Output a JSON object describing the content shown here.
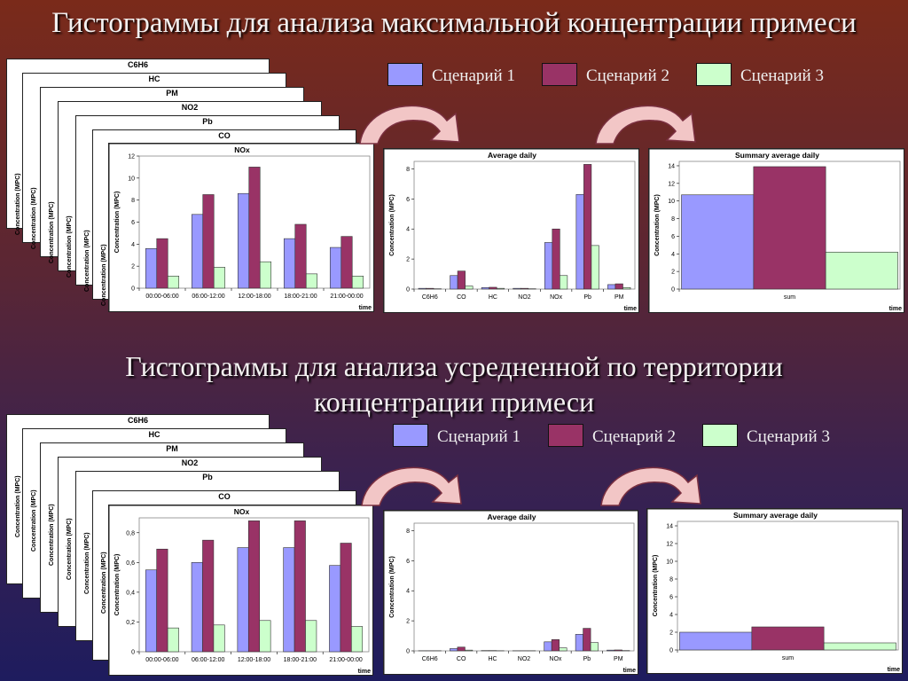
{
  "headings": {
    "top": "Гистограммы для анализа максимальной концентрации примеси",
    "bottom_line1": "Гистограммы для анализа усредненной по территории",
    "bottom_line2": "концентрации примеси"
  },
  "legend": {
    "items": [
      "Сценарий 1",
      "Сценарий 2",
      "Сценарий 3"
    ],
    "colors": [
      "#9999ff",
      "#993366",
      "#ccffcc"
    ]
  },
  "stack_titles": [
    "C6H6",
    "HC",
    "PM",
    "NO2",
    "Pb",
    "CO"
  ],
  "ylabel": "Concentration (MPC)",
  "xlabel": "time",
  "chart_data": [
    {
      "id": "top-nox",
      "type": "bar",
      "title": "NOx",
      "categories": [
        "00:00-06:00",
        "06:00-12:00",
        "12:00-18:00",
        "18:00-21:00",
        "21:00-00:00"
      ],
      "series": [
        {
          "name": "Сценарий 1",
          "values": [
            3.6,
            6.7,
            8.6,
            4.5,
            3.7
          ]
        },
        {
          "name": "Сценарий 2",
          "values": [
            4.5,
            8.5,
            11.0,
            5.8,
            4.7
          ]
        },
        {
          "name": "Сценарий 3",
          "values": [
            1.1,
            1.9,
            2.4,
            1.3,
            1.1
          ]
        }
      ],
      "ylim": [
        0,
        12
      ],
      "yticks": [
        "0",
        "2",
        "4",
        "6",
        "8",
        "10",
        "12"
      ],
      "ylabel": "Concentration (MPC)",
      "xlabel": "time"
    },
    {
      "id": "top-avg",
      "type": "bar",
      "title": "Average daily",
      "categories": [
        "C6H6",
        "CO",
        "HC",
        "NO2",
        "NOx",
        "Pb",
        "PM"
      ],
      "series": [
        {
          "name": "Сценарий 1",
          "values": [
            0.05,
            0.9,
            0.1,
            0.05,
            3.1,
            6.3,
            0.3
          ]
        },
        {
          "name": "Сценарий 2",
          "values": [
            0.05,
            1.2,
            0.12,
            0.05,
            4.0,
            8.3,
            0.35
          ]
        },
        {
          "name": "Сценарий 3",
          "values": [
            0.02,
            0.2,
            0.05,
            0.02,
            0.9,
            2.9,
            0.1
          ]
        }
      ],
      "ylim": [
        0,
        8.5
      ],
      "yticks": [
        "0",
        "2",
        "4",
        "6",
        "8"
      ],
      "ylabel": "Concentration (MPC)",
      "xlabel": "time"
    },
    {
      "id": "top-sum",
      "type": "bar",
      "title": "Summary average daily",
      "categories": [
        "sum"
      ],
      "series": [
        {
          "name": "Сценарий 1",
          "values": [
            10.7
          ]
        },
        {
          "name": "Сценарий 2",
          "values": [
            13.9
          ]
        },
        {
          "name": "Сценарий 3",
          "values": [
            4.2
          ]
        }
      ],
      "ylim": [
        0,
        14.5
      ],
      "yticks": [
        "0",
        "2",
        "4",
        "6",
        "8",
        "10",
        "12",
        "14"
      ],
      "ylabel": "Concentration (MPC)",
      "xlabel": "time"
    },
    {
      "id": "bottom-nox",
      "type": "bar",
      "title": "NOx",
      "categories": [
        "00:00-06:00",
        "06:00-12:00",
        "12:00-18:00",
        "18:00-21:00",
        "21:00-00:00"
      ],
      "series": [
        {
          "name": "Сценарий 1",
          "values": [
            0.55,
            0.6,
            0.7,
            0.7,
            0.58
          ]
        },
        {
          "name": "Сценарий 2",
          "values": [
            0.69,
            0.75,
            0.88,
            0.88,
            0.73
          ]
        },
        {
          "name": "Сценарий 3",
          "values": [
            0.16,
            0.18,
            0.21,
            0.21,
            0.17
          ]
        }
      ],
      "ylim": [
        0,
        0.9
      ],
      "yticks": [
        "0",
        "0,2",
        "0,4",
        "0,6",
        "0,8"
      ],
      "ylabel": "Concentration (MPC)",
      "xlabel": "time"
    },
    {
      "id": "bottom-avg",
      "type": "bar",
      "title": "Average daily",
      "categories": [
        "C6H6",
        "CO",
        "HC",
        "NO2",
        "NOx",
        "Pb",
        "PM"
      ],
      "series": [
        {
          "name": "Сценарий 1",
          "values": [
            0.01,
            0.15,
            0.02,
            0.01,
            0.6,
            1.1,
            0.05
          ]
        },
        {
          "name": "Сценарий 2",
          "values": [
            0.01,
            0.25,
            0.02,
            0.01,
            0.75,
            1.5,
            0.06
          ]
        },
        {
          "name": "Сценарий 3",
          "values": [
            0.01,
            0.05,
            0.01,
            0.01,
            0.2,
            0.55,
            0.02
          ]
        }
      ],
      "ylim": [
        0,
        8.5
      ],
      "yticks": [
        "0",
        "2",
        "4",
        "6",
        "8"
      ],
      "ylabel": "Concentration (MPC)",
      "xlabel": "time"
    },
    {
      "id": "bottom-sum",
      "type": "bar",
      "title": "Summary average daily",
      "categories": [
        "sum"
      ],
      "series": [
        {
          "name": "Сценарий 1",
          "values": [
            2.0
          ]
        },
        {
          "name": "Сценарий 2",
          "values": [
            2.6
          ]
        },
        {
          "name": "Сценарий 3",
          "values": [
            0.8
          ]
        }
      ],
      "ylim": [
        0,
        14.5
      ],
      "yticks": [
        "0",
        "2",
        "4",
        "6",
        "8",
        "10",
        "12",
        "14"
      ],
      "ylabel": "Concentration (MPC)",
      "xlabel": "time"
    }
  ]
}
